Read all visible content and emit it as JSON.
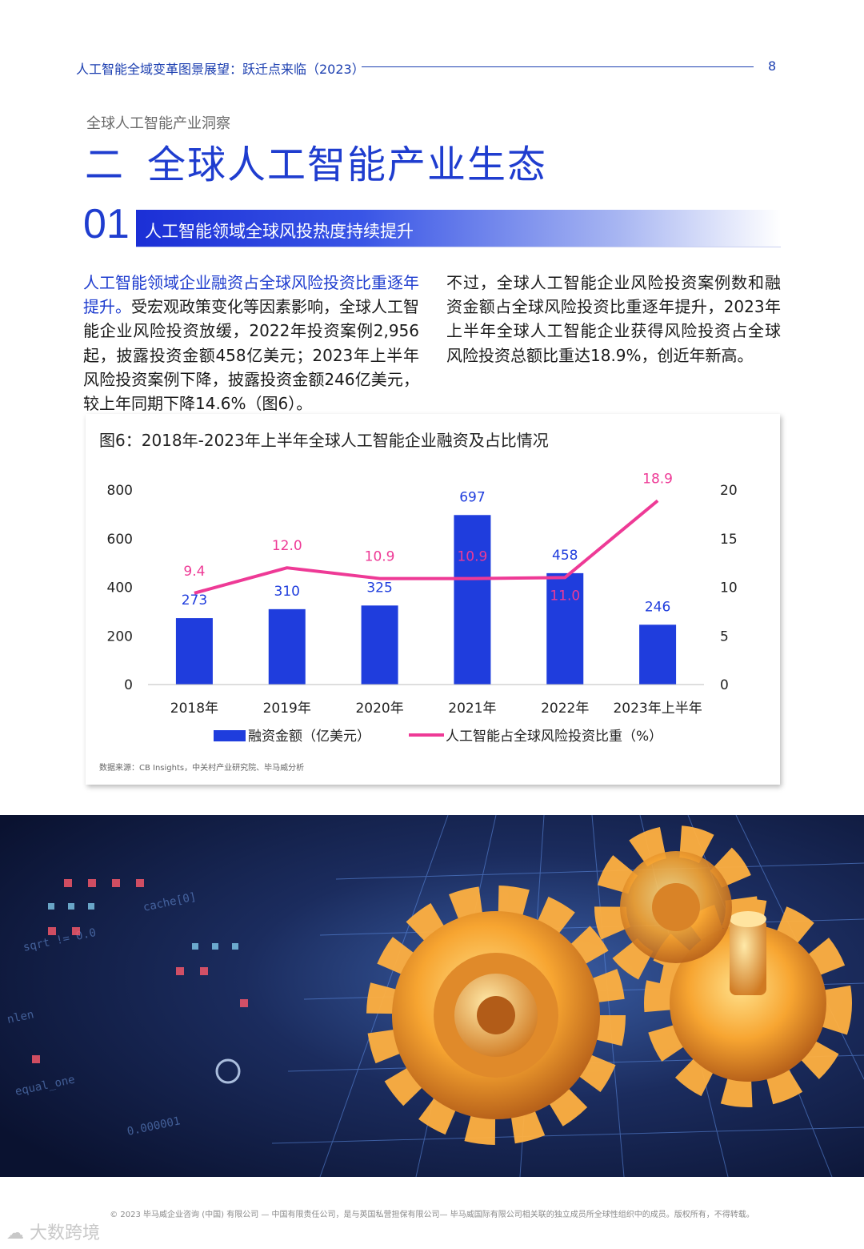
{
  "header": {
    "title": "人工智能全域变革图景展望：跃迁点来临（2023）",
    "page_number": "8"
  },
  "section": {
    "subtitle": "全球人工智能产业洞察",
    "number": "二",
    "title": "全球人工智能产业生态"
  },
  "subsection": {
    "number": "01",
    "title": "人工智能领域全球风投热度持续提升"
  },
  "body": {
    "left_highlight": "人工智能领域企业融资占全球风险投资比重逐年提升。",
    "left_text": "受宏观政策变化等因素影响，全球人工智能企业风险投资放缓，2022年投资案例2,956起，披露投资金额458亿美元；2023年上半年风险投资案例下降，披露投资金额246亿美元，较上年同期下降14.6%（图6）。",
    "right_text": "不过，全球人工智能企业风险投资案例数和融资金额占全球风险投资比重逐年提升，2023年上半年全球人工智能企业获得风险投资占全球风险投资总额比重达18.9%，创近年新高。"
  },
  "figure": {
    "title": "图6：2018年-2023年上半年全球人工智能企业融资及占比情况",
    "source": "数据来源：CB Insights，中关村产业研究院、毕马威分析"
  },
  "chart_data": {
    "type": "bar",
    "categories": [
      "2018年",
      "2019年",
      "2020年",
      "2021年",
      "2022年",
      "2023年上半年"
    ],
    "series": [
      {
        "name": "融资金额（亿美元）",
        "type": "bar",
        "axis": "left",
        "color": "#1f3ddd",
        "values": [
          273,
          310,
          325,
          697,
          458,
          246
        ],
        "labels": [
          "273",
          "310",
          "325",
          "697",
          "458",
          "246"
        ]
      },
      {
        "name": "人工智能占全球风险投资比重（%）",
        "type": "line",
        "axis": "right",
        "color": "#ee3a96",
        "values": [
          9.4,
          12.0,
          10.9,
          10.9,
          11.0,
          18.9
        ],
        "labels": [
          "9.4",
          "12.0",
          "10.9",
          "10.9",
          "11.0",
          "18.9"
        ]
      }
    ],
    "y_left": {
      "min": 0,
      "max": 800,
      "ticks": [
        "0",
        "200",
        "400",
        "600",
        "800"
      ]
    },
    "y_right": {
      "min": 0,
      "max": 20,
      "ticks": [
        "0",
        "5",
        "10",
        "15",
        "20"
      ]
    },
    "grid": false,
    "legend_position": "bottom"
  },
  "footer": {
    "copyright": "© 2023 毕马威企业咨询 (中国) 有限公司 — 中国有限责任公司，是与英国私营担保有限公司— 毕马威国际有限公司相关联的独立成员所全球性组织中的成员。版权所有，不得转载。"
  },
  "watermark": "大数跨境"
}
